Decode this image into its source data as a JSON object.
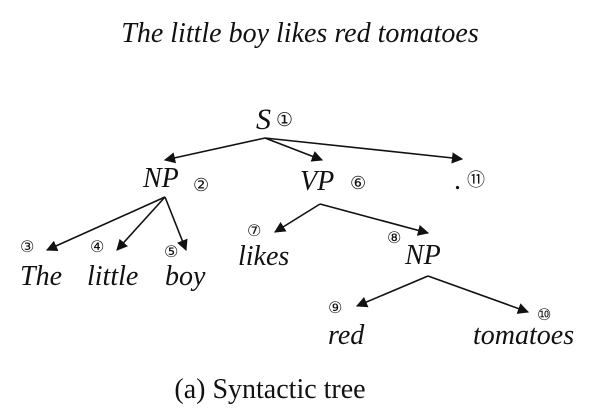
{
  "sentence": "The little boy likes red tomatoes",
  "caption": "(a) Syntactic tree",
  "nodes": {
    "s": {
      "label": "S",
      "num": "①"
    },
    "np1": {
      "label": "NP",
      "num": "②"
    },
    "the": {
      "label": "The",
      "num": "③"
    },
    "little": {
      "label": "little",
      "num": "④"
    },
    "boy": {
      "label": "boy",
      "num": "⑤"
    },
    "vp": {
      "label": "VP",
      "num": "⑥"
    },
    "likes": {
      "label": "likes",
      "num": "⑦"
    },
    "np2": {
      "label": "NP",
      "num": "⑧"
    },
    "red": {
      "label": "red",
      "num": "⑨"
    },
    "tomatoes": {
      "label": "tomatoes",
      "num": "⑩"
    },
    "period": {
      "label": ".",
      "num": "⑪"
    }
  },
  "edges": [
    {
      "from": "s",
      "to": "np1"
    },
    {
      "from": "s",
      "to": "vp"
    },
    {
      "from": "s",
      "to": "period"
    },
    {
      "from": "np1",
      "to": "the"
    },
    {
      "from": "np1",
      "to": "little"
    },
    {
      "from": "np1",
      "to": "boy"
    },
    {
      "from": "vp",
      "to": "likes"
    },
    {
      "from": "vp",
      "to": "np2"
    },
    {
      "from": "np2",
      "to": "red"
    },
    {
      "from": "np2",
      "to": "tomatoes"
    }
  ]
}
